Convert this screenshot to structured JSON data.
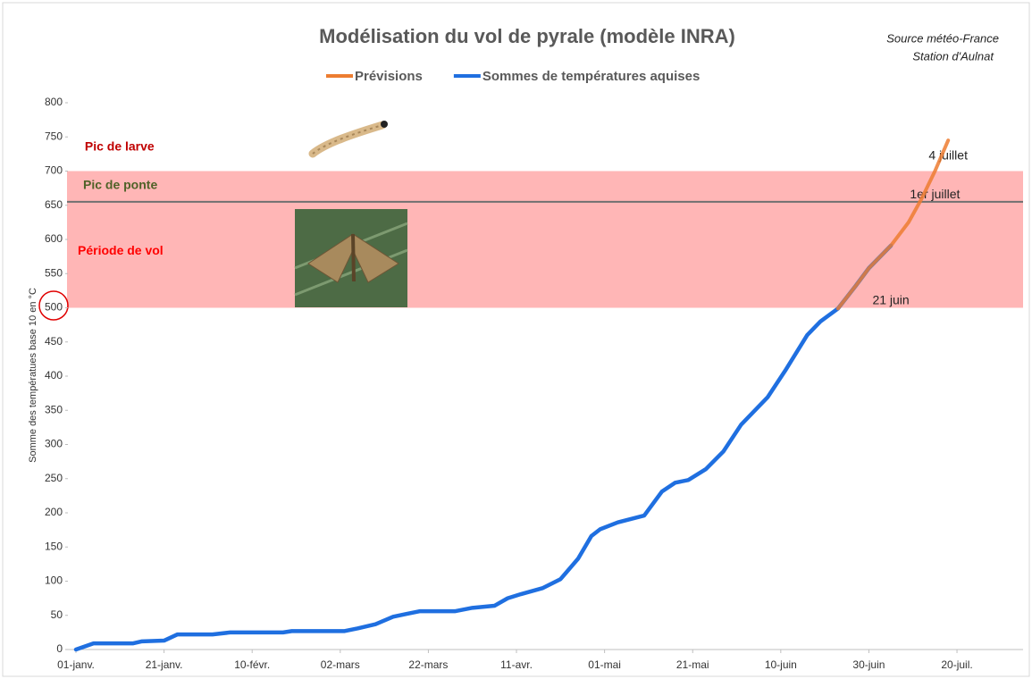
{
  "chart_data": {
    "type": "line",
    "title": "Modélisation du vol de pyrale (modèle INRA)",
    "source": [
      "Source météo-France",
      "Station d'Aulnat"
    ],
    "y_label": "Somme des températues base 10 en °C",
    "xlim": [
      0,
      215
    ],
    "xticks": [
      {
        "value": 0,
        "label": "01-janv."
      },
      {
        "value": 20,
        "label": "21-janv."
      },
      {
        "value": 40,
        "label": "10-févr."
      },
      {
        "value": 60,
        "label": "02-mars"
      },
      {
        "value": 80,
        "label": "22-mars"
      },
      {
        "value": 100,
        "label": "11-avr."
      },
      {
        "value": 120,
        "label": "01-mai"
      },
      {
        "value": 140,
        "label": "21-mai"
      },
      {
        "value": 160,
        "label": "10-juin"
      },
      {
        "value": 180,
        "label": "30-juin"
      },
      {
        "value": 200,
        "label": "20-juil."
      }
    ],
    "ylim": [
      0,
      800
    ],
    "yticks": [
      0,
      50,
      100,
      150,
      200,
      250,
      300,
      350,
      400,
      450,
      500,
      550,
      600,
      650,
      700,
      750,
      800
    ],
    "zones": [
      {
        "label": "Période de vol",
        "from": 500,
        "to": 700,
        "color": "#ffb6b6"
      }
    ],
    "reference_lines": [
      {
        "label": "Pic de ponte",
        "value": 655,
        "color": "#707070"
      }
    ],
    "annotations": [
      {
        "text": "Pic de larve",
        "x": 2,
        "y": 735,
        "color": "#c00000"
      },
      {
        "text": "4 juillet",
        "x": 198,
        "y": 722,
        "color": "#222222"
      },
      {
        "text": "1er juillet",
        "x": 195,
        "y": 665,
        "color": "#222222"
      },
      {
        "text": "21 juin",
        "x": 185,
        "y": 510,
        "color": "#222222"
      }
    ],
    "series": [
      {
        "name": "Prévisions",
        "color": "#ed7d31",
        "x": [
          173,
          177,
          180,
          185,
          189,
          192,
          195,
          198
        ],
        "values": [
          499,
          532,
          558,
          591,
          625,
          660,
          700,
          745
        ]
      },
      {
        "name": "Sommes de températures aquises",
        "color": "#1f6fe0",
        "x": [
          0,
          4,
          13,
          15,
          20,
          23,
          26,
          31,
          35,
          47,
          49,
          61,
          64,
          68,
          72,
          75,
          78,
          86,
          90,
          95,
          98,
          101,
          106,
          110,
          114,
          117,
          119,
          123,
          129,
          133,
          136,
          139,
          143,
          147,
          151,
          157,
          161,
          166,
          169,
          173,
          177,
          180,
          185
        ],
        "values": [
          0,
          9,
          9,
          12,
          13,
          22,
          22,
          22,
          25,
          25,
          27,
          27,
          31,
          37,
          48,
          52,
          56,
          56,
          61,
          64,
          75,
          81,
          90,
          103,
          133,
          166,
          176,
          186,
          196,
          231,
          244,
          248,
          264,
          290,
          329,
          369,
          408,
          460,
          480,
          499,
          532,
          558,
          591
        ]
      }
    ]
  }
}
